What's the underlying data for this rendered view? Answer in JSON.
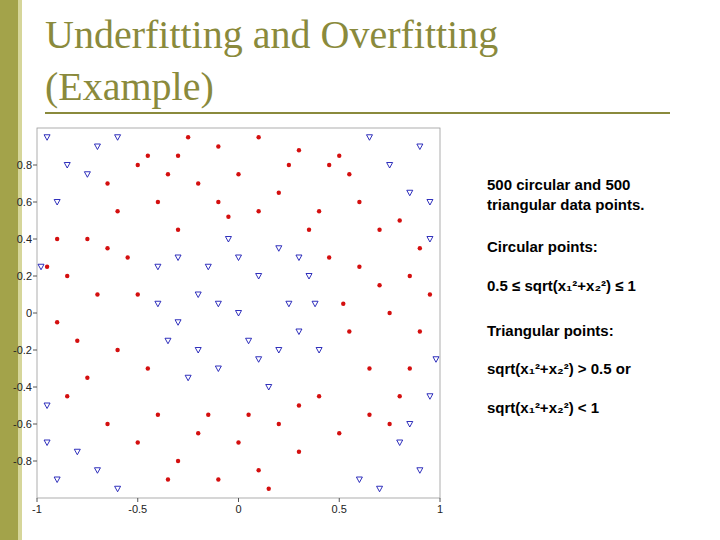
{
  "slide": {
    "title": [
      "Underfitting and Overfitting",
      "(Example)"
    ],
    "text": [
      "500 circular and 500",
      "triangular data points.",
      "Circular points:",
      "0.5 ≤ sqrt(x₁²+x₂²) ≤ 1",
      "Triangular points:",
      "sqrt(x₁²+x₂²) > 0.5 or",
      "sqrt(x₁²+x₂²) < 1"
    ]
  },
  "chart_data": {
    "type": "scatter",
    "xlim": [
      -1,
      1
    ],
    "ylim": [
      -1,
      1
    ],
    "xticks": [
      -1,
      -0.5,
      0,
      0.5,
      1
    ],
    "yticks": [
      -0.8,
      -0.6,
      -0.4,
      -0.2,
      0,
      0.2,
      0.4,
      0.6,
      0.8
    ],
    "grid": false,
    "series": [
      {
        "color": "#d40f0f",
        "marker": "circle",
        "x": [
          -0.5,
          -0.3,
          -0.1,
          0.1,
          0.3,
          0.45,
          -0.2,
          0,
          0.2,
          -0.4,
          0.4,
          0.6,
          -0.6,
          0.1,
          -0.1,
          0.55,
          -0.65,
          0.25,
          -0.35,
          0.7,
          -0.75,
          0.85,
          0.9,
          0.75,
          0.6,
          0.65,
          0.8,
          0.55,
          0.95,
          0.7,
          0.85,
          -0.85,
          -0.9,
          -0.7,
          -0.6,
          -0.75,
          -0.55,
          -0.95,
          -0.8,
          -0.65,
          -0.85,
          -0.5,
          -0.3,
          -0.1,
          0.1,
          0.3,
          0.5,
          0.2,
          -0.2,
          0,
          -0.4,
          0.4,
          -0.65,
          0.65,
          0.15,
          -0.15,
          0.05,
          0.35,
          -0.3,
          0.45,
          -0.45,
          0.3,
          -0.5,
          0.52,
          -0.05,
          0.9,
          -0.9,
          0.5,
          -0.45,
          0.75,
          -0.35,
          0.8,
          -0.25
        ],
        "values": [
          0.8,
          0.85,
          0.9,
          0.95,
          0.88,
          0.8,
          0.7,
          0.75,
          0.65,
          0.6,
          0.55,
          0.6,
          0.55,
          0.55,
          0.6,
          0.75,
          0.7,
          0.8,
          0.75,
          0.45,
          0.4,
          0.2,
          -0.1,
          0,
          0.25,
          -0.3,
          -0.45,
          -0.1,
          0.1,
          0.15,
          -0.3,
          0.2,
          -0.05,
          0.1,
          -0.2,
          -0.35,
          0.3,
          0.25,
          -0.15,
          0.35,
          -0.45,
          -0.7,
          -0.8,
          -0.9,
          -0.85,
          -0.75,
          -0.65,
          -0.6,
          -0.65,
          -0.7,
          -0.55,
          -0.45,
          -0.6,
          -0.55,
          -0.95,
          -0.55,
          -0.55,
          0.45,
          0.45,
          0.3,
          -0.3,
          -0.5,
          0.1,
          0.05,
          0.52,
          0.35,
          0.4,
          0.85,
          0.85,
          -0.6,
          -0.9,
          0.5,
          0.95
        ]
      },
      {
        "color": "#1a1ab4",
        "marker": "triangle-down",
        "x": [
          0,
          0.1,
          -0.2,
          0.3,
          -0.1,
          0.2,
          -0.3,
          0.35,
          -0.35,
          0.15,
          -0.05,
          0.25,
          -0.4,
          0.05,
          -0.2,
          0.4,
          -0.15,
          0.1,
          0.3,
          -0.25,
          0,
          -0.4,
          0.2,
          -0.1,
          0.38,
          -0.3,
          -0.95,
          -0.85,
          -0.9,
          -0.7,
          -0.75,
          -0.6,
          0.9,
          0.75,
          0.95,
          0.65,
          0.85,
          0.95,
          -0.9,
          -0.8,
          -0.95,
          -0.6,
          -0.7,
          -0.95,
          0.9,
          0.8,
          0.95,
          0.6,
          0.7,
          0.85,
          -0.98,
          0.98
        ],
        "values": [
          0,
          0.2,
          0.1,
          -0.1,
          -0.3,
          0.35,
          0.3,
          0.2,
          -0.15,
          -0.4,
          0.4,
          0.05,
          0.05,
          -0.15,
          -0.2,
          -0.2,
          0.25,
          -0.25,
          0.3,
          -0.35,
          0.3,
          0.25,
          -0.2,
          0.05,
          0.05,
          -0.05,
          0.95,
          0.8,
          0.6,
          0.9,
          0.75,
          0.95,
          0.9,
          0.8,
          0.6,
          0.95,
          0.65,
          0.4,
          -0.9,
          -0.75,
          -0.5,
          -0.95,
          -0.85,
          -0.7,
          -0.85,
          -0.7,
          -0.45,
          -0.9,
          -0.95,
          -0.6,
          0.25,
          -0.25
        ]
      }
    ]
  }
}
